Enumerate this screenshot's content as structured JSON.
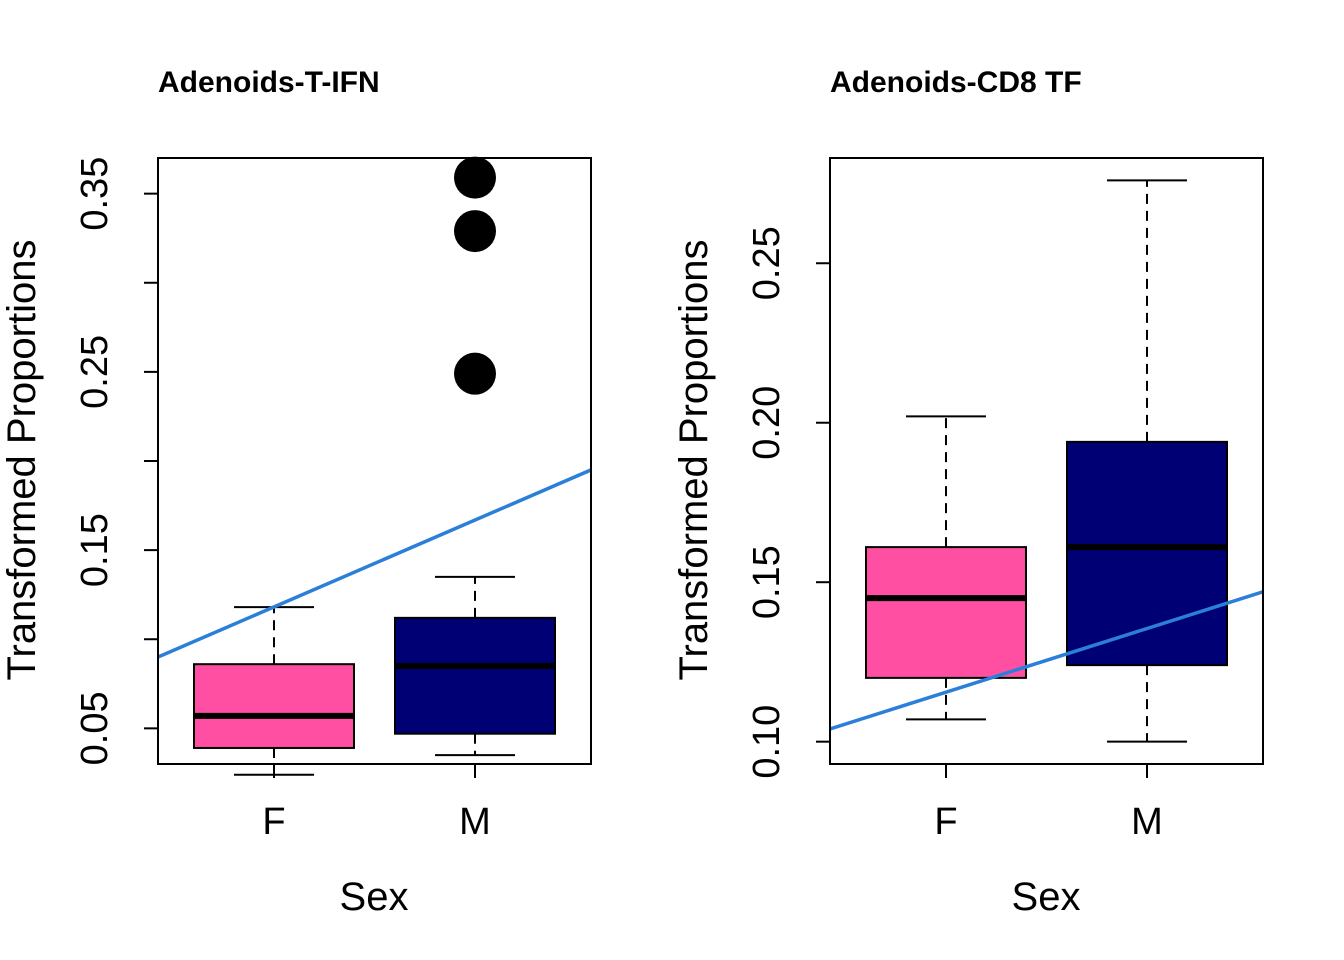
{
  "chart_data": [
    {
      "type": "boxplot",
      "title": "Adenoids-T-IFN",
      "xlabel": "Sex",
      "ylabel": "Transformed Proportions",
      "ylim": [
        0.03,
        0.37
      ],
      "yticks": [
        "0.05",
        "0.15",
        "0.25",
        "0.35"
      ],
      "yticks_minor": [
        0.1,
        0.2,
        0.3
      ],
      "categories": [
        "F",
        "M"
      ],
      "boxes": [
        {
          "category": "F",
          "whisker_low": 0.024,
          "q1": 0.039,
          "median": 0.057,
          "q3": 0.086,
          "whisker_high": 0.118,
          "fill": "#ff4fa3",
          "outliers": []
        },
        {
          "category": "M",
          "whisker_low": 0.035,
          "q1": 0.047,
          "median": 0.085,
          "q3": 0.112,
          "whisker_high": 0.135,
          "fill": "#000075",
          "outliers": [
            0.249,
            0.329,
            0.359
          ]
        }
      ],
      "trend_line": {
        "color": "#2b7fd9",
        "y_at_left": 0.09,
        "y_at_right": 0.195
      }
    },
    {
      "type": "boxplot",
      "title": "Adenoids-CD8 TF",
      "xlabel": "Sex",
      "ylabel": "Transformed Proportions",
      "ylim": [
        0.093,
        0.283
      ],
      "yticks": [
        "0.10",
        "0.15",
        "0.20",
        "0.25"
      ],
      "yticks_minor": [],
      "categories": [
        "F",
        "M"
      ],
      "boxes": [
        {
          "category": "F",
          "whisker_low": 0.107,
          "q1": 0.12,
          "median": 0.145,
          "q3": 0.161,
          "whisker_high": 0.202,
          "fill": "#ff4fa3",
          "outliers": []
        },
        {
          "category": "M",
          "whisker_low": 0.1,
          "q1": 0.124,
          "median": 0.161,
          "q3": 0.194,
          "whisker_high": 0.276,
          "fill": "#000075",
          "outliers": []
        }
      ],
      "trend_line": {
        "color": "#2b7fd9",
        "y_at_left": 0.104,
        "y_at_right": 0.147
      }
    }
  ]
}
